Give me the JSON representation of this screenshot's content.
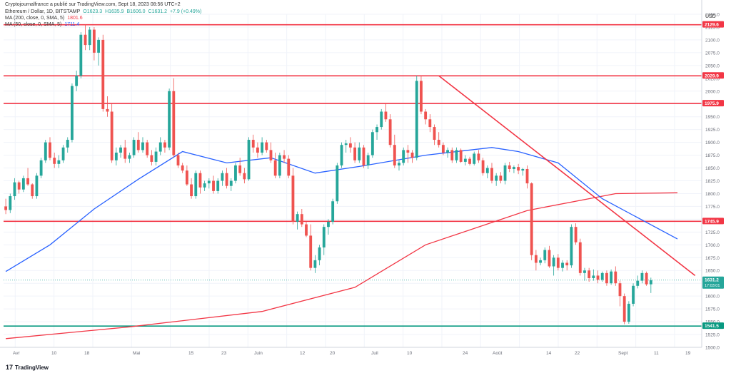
{
  "header": {
    "source_line": "Cryptojournalfrance a publié sur TradingView.com, Sept 18, 2023 08:56 UTC+2",
    "symbol": "Ethereum / Dollar, 1D, BITSTAMP",
    "open": "O1623.3",
    "high": "H1635.9",
    "low": "B1606.0",
    "close": "C1631.2",
    "change": "+7.9 (+0.49%)",
    "ma200_label": "MA (200, close, 0, SMA, 5)",
    "ma200_value": "1801.6",
    "ma50_label": "MA (50, close, 0, SMA, 5)",
    "ma50_value": "1711.4"
  },
  "branding": {
    "logo": "17",
    "name": "TradingView"
  },
  "colors": {
    "up": "#26a69a",
    "down": "#ef5350",
    "ma200": "#f23645",
    "ma50": "#2962ff",
    "resistance": "#f23645",
    "support": "#089981",
    "trend": "#f23645"
  },
  "chart_data": {
    "type": "candlestick",
    "currency": "USD",
    "ylim": [
      1500,
      2150
    ],
    "y_ticks": [
      1500,
      1525,
      1550,
      1575,
      1600,
      1625,
      1650,
      1675,
      1700,
      1725,
      1750,
      1775,
      1800,
      1825,
      1850,
      1875,
      1900,
      1925,
      1950,
      1975,
      2000,
      2025,
      2050,
      2075,
      2100,
      2125,
      2150
    ],
    "x_labels": [
      "Avr",
      "10",
      "18",
      "Mai",
      "15",
      "23",
      "Juin",
      "12",
      "20",
      "Juil",
      "10",
      "24",
      "Août",
      "14",
      "22",
      "Sept",
      "11",
      "19"
    ],
    "candles": [
      [
        1775,
        1790,
        1760,
        1768
      ],
      [
        1768,
        1800,
        1762,
        1795
      ],
      [
        1795,
        1830,
        1788,
        1822
      ],
      [
        1822,
        1825,
        1800,
        1808
      ],
      [
        1808,
        1835,
        1803,
        1830
      ],
      [
        1830,
        1850,
        1815,
        1818
      ],
      [
        1818,
        1820,
        1790,
        1795
      ],
      [
        1795,
        1840,
        1790,
        1835
      ],
      [
        1835,
        1870,
        1830,
        1865
      ],
      [
        1865,
        1905,
        1860,
        1900
      ],
      [
        1900,
        1910,
        1865,
        1870
      ],
      [
        1870,
        1880,
        1850,
        1858
      ],
      [
        1858,
        1875,
        1850,
        1865
      ],
      [
        1865,
        1895,
        1860,
        1890
      ],
      [
        1890,
        1910,
        1880,
        1905
      ],
      [
        1905,
        2015,
        1900,
        2010
      ],
      [
        2010,
        2040,
        2000,
        2030
      ],
      [
        2030,
        2115,
        2025,
        2110
      ],
      [
        2110,
        2130,
        2080,
        2090
      ],
      [
        2090,
        2125,
        2080,
        2120
      ],
      [
        2120,
        2125,
        2060,
        2075
      ],
      [
        2075,
        2105,
        2050,
        2100
      ],
      [
        2100,
        2110,
        1960,
        1965
      ],
      [
        1965,
        1990,
        1950,
        1960
      ],
      [
        1960,
        1975,
        1860,
        1865
      ],
      [
        1865,
        1890,
        1855,
        1880
      ],
      [
        1880,
        1895,
        1870,
        1890
      ],
      [
        1890,
        1905,
        1860,
        1868
      ],
      [
        1868,
        1880,
        1860,
        1875
      ],
      [
        1875,
        1910,
        1870,
        1905
      ],
      [
        1905,
        1920,
        1880,
        1885
      ],
      [
        1885,
        1910,
        1880,
        1900
      ],
      [
        1900,
        1905,
        1870,
        1875
      ],
      [
        1875,
        1885,
        1855,
        1862
      ],
      [
        1862,
        1890,
        1855,
        1882
      ],
      [
        1882,
        1910,
        1875,
        1900
      ],
      [
        1900,
        1905,
        1880,
        1890
      ],
      [
        1890,
        2005,
        1885,
        2000
      ],
      [
        2000,
        2025,
        1870,
        1875
      ],
      [
        1875,
        1880,
        1850,
        1855
      ],
      [
        1855,
        1860,
        1840,
        1845
      ],
      [
        1845,
        1855,
        1815,
        1818
      ],
      [
        1818,
        1830,
        1790,
        1795
      ],
      [
        1795,
        1845,
        1790,
        1840
      ],
      [
        1840,
        1845,
        1800,
        1812
      ],
      [
        1812,
        1825,
        1805,
        1820
      ],
      [
        1820,
        1830,
        1810,
        1825
      ],
      [
        1825,
        1835,
        1800,
        1805
      ],
      [
        1805,
        1830,
        1800,
        1825
      ],
      [
        1825,
        1845,
        1815,
        1840
      ],
      [
        1840,
        1850,
        1810,
        1815
      ],
      [
        1815,
        1830,
        1805,
        1825
      ],
      [
        1825,
        1860,
        1820,
        1855
      ],
      [
        1855,
        1870,
        1835,
        1840
      ],
      [
        1840,
        1850,
        1820,
        1828
      ],
      [
        1828,
        1910,
        1825,
        1905
      ],
      [
        1905,
        1915,
        1880,
        1890
      ],
      [
        1890,
        1900,
        1870,
        1880
      ],
      [
        1880,
        1910,
        1875,
        1900
      ],
      [
        1900,
        1905,
        1880,
        1885
      ],
      [
        1885,
        1900,
        1860,
        1865
      ],
      [
        1865,
        1880,
        1830,
        1835
      ],
      [
        1835,
        1880,
        1830,
        1875
      ],
      [
        1875,
        1885,
        1860,
        1868
      ],
      [
        1868,
        1875,
        1830,
        1835
      ],
      [
        1835,
        1850,
        1740,
        1745
      ],
      [
        1745,
        1765,
        1730,
        1760
      ],
      [
        1760,
        1770,
        1735,
        1740
      ],
      [
        1740,
        1745,
        1715,
        1718
      ],
      [
        1718,
        1740,
        1650,
        1655
      ],
      [
        1655,
        1680,
        1645,
        1670
      ],
      [
        1670,
        1700,
        1660,
        1695
      ],
      [
        1695,
        1740,
        1680,
        1735
      ],
      [
        1735,
        1750,
        1720,
        1745
      ],
      [
        1745,
        1790,
        1740,
        1785
      ],
      [
        1785,
        1860,
        1780,
        1855
      ],
      [
        1855,
        1900,
        1850,
        1895
      ],
      [
        1895,
        1905,
        1880,
        1898
      ],
      [
        1898,
        1910,
        1880,
        1890
      ],
      [
        1890,
        1900,
        1860,
        1865
      ],
      [
        1865,
        1900,
        1860,
        1890
      ],
      [
        1890,
        1895,
        1850,
        1855
      ],
      [
        1855,
        1880,
        1848,
        1875
      ],
      [
        1875,
        1925,
        1870,
        1920
      ],
      [
        1920,
        1935,
        1905,
        1930
      ],
      [
        1930,
        1965,
        1925,
        1960
      ],
      [
        1960,
        1975,
        1940,
        1945
      ],
      [
        1945,
        1955,
        1890,
        1895
      ],
      [
        1895,
        1915,
        1850,
        1855
      ],
      [
        1855,
        1865,
        1845,
        1860
      ],
      [
        1860,
        1890,
        1855,
        1885
      ],
      [
        1885,
        1895,
        1860,
        1880
      ],
      [
        1880,
        1885,
        1860,
        1870
      ],
      [
        1870,
        2030,
        1865,
        2020
      ],
      [
        2020,
        2030,
        1955,
        1960
      ],
      [
        1960,
        1965,
        1935,
        1945
      ],
      [
        1945,
        1955,
        1920,
        1930
      ],
      [
        1930,
        1935,
        1895,
        1905
      ],
      [
        1905,
        1920,
        1890,
        1895
      ],
      [
        1895,
        1900,
        1875,
        1880
      ],
      [
        1880,
        1890,
        1870,
        1885
      ],
      [
        1885,
        1890,
        1860,
        1865
      ],
      [
        1865,
        1890,
        1860,
        1885
      ],
      [
        1885,
        1888,
        1860,
        1862
      ],
      [
        1862,
        1875,
        1855,
        1868
      ],
      [
        1868,
        1872,
        1855,
        1858
      ],
      [
        1858,
        1882,
        1855,
        1878
      ],
      [
        1878,
        1885,
        1860,
        1865
      ],
      [
        1865,
        1870,
        1835,
        1840
      ],
      [
        1840,
        1855,
        1830,
        1850
      ],
      [
        1850,
        1860,
        1820,
        1825
      ],
      [
        1825,
        1840,
        1815,
        1835
      ],
      [
        1835,
        1842,
        1820,
        1825
      ],
      [
        1825,
        1860,
        1818,
        1855
      ],
      [
        1855,
        1862,
        1842,
        1848
      ],
      [
        1848,
        1855,
        1840,
        1852
      ],
      [
        1852,
        1858,
        1838,
        1845
      ],
      [
        1845,
        1850,
        1835,
        1848
      ],
      [
        1848,
        1855,
        1810,
        1820
      ],
      [
        1820,
        1822,
        1670,
        1680
      ],
      [
        1680,
        1690,
        1650,
        1665
      ],
      [
        1665,
        1675,
        1660,
        1670
      ],
      [
        1670,
        1695,
        1664,
        1690
      ],
      [
        1690,
        1698,
        1655,
        1658
      ],
      [
        1658,
        1680,
        1640,
        1675
      ],
      [
        1675,
        1682,
        1650,
        1655
      ],
      [
        1655,
        1670,
        1648,
        1665
      ],
      [
        1665,
        1670,
        1650,
        1660
      ],
      [
        1660,
        1740,
        1655,
        1735
      ],
      [
        1735,
        1742,
        1700,
        1705
      ],
      [
        1705,
        1712,
        1640,
        1645
      ],
      [
        1645,
        1655,
        1630,
        1650
      ],
      [
        1650,
        1655,
        1628,
        1635
      ],
      [
        1635,
        1652,
        1630,
        1640
      ],
      [
        1640,
        1650,
        1625,
        1632
      ],
      [
        1632,
        1648,
        1628,
        1645
      ],
      [
        1645,
        1650,
        1620,
        1625
      ],
      [
        1625,
        1652,
        1622,
        1648
      ],
      [
        1648,
        1658,
        1620,
        1625
      ],
      [
        1625,
        1630,
        1580,
        1600
      ],
      [
        1600,
        1605,
        1545,
        1550
      ],
      [
        1550,
        1590,
        1546,
        1585
      ],
      [
        1585,
        1625,
        1580,
        1620
      ],
      [
        1620,
        1640,
        1615,
        1630
      ],
      [
        1630,
        1650,
        1625,
        1645
      ],
      [
        1645,
        1648,
        1620,
        1623
      ],
      [
        1623,
        1636,
        1606,
        1631
      ]
    ],
    "ma200": [
      [
        0,
        1517
      ],
      [
        28,
        1540
      ],
      [
        58,
        1570
      ],
      [
        79,
        1617
      ],
      [
        95,
        1700
      ],
      [
        118,
        1767
      ],
      [
        138,
        1800
      ],
      [
        152,
        1801.6
      ]
    ],
    "ma50": [
      [
        0,
        1648
      ],
      [
        10,
        1700
      ],
      [
        20,
        1770
      ],
      [
        30,
        1828
      ],
      [
        40,
        1882
      ],
      [
        50,
        1860
      ],
      [
        60,
        1870
      ],
      [
        70,
        1840
      ],
      [
        80,
        1853
      ],
      [
        95,
        1875
      ],
      [
        110,
        1890
      ],
      [
        116,
        1882
      ],
      [
        125,
        1860
      ],
      [
        135,
        1790
      ],
      [
        152,
        1711.4
      ]
    ],
    "resistance_levels": [
      2129.6,
      2029.9,
      1975.9,
      1745.9
    ],
    "support_levels": [
      1541.5
    ],
    "trendline": {
      "from": [
        98,
        2030
      ],
      "to": [
        156,
        1640
      ]
    },
    "price_labels": [
      {
        "value": 2129.6,
        "text": "2129.6",
        "kind": "resistance"
      },
      {
        "value": 2029.9,
        "text": "2029.9",
        "kind": "resistance"
      },
      {
        "value": 1975.9,
        "text": "1975.9",
        "kind": "resistance"
      },
      {
        "value": 1745.9,
        "text": "1745.9",
        "kind": "resistance"
      },
      {
        "value": 1631.2,
        "text": "1631.2",
        "sub": "17:03:01",
        "kind": "last"
      },
      {
        "value": 1541.5,
        "text": "1541.5",
        "kind": "support"
      }
    ]
  }
}
